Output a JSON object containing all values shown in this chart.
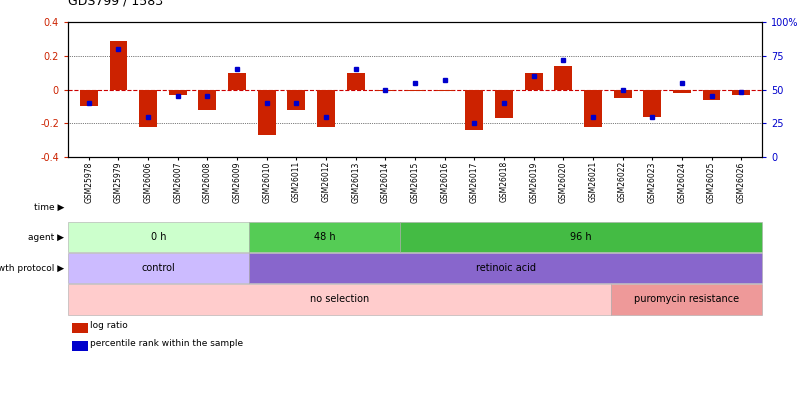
{
  "title": "GDS799 / 1583",
  "samples": [
    "GSM25978",
    "GSM25979",
    "GSM26006",
    "GSM26007",
    "GSM26008",
    "GSM26009",
    "GSM26010",
    "GSM26011",
    "GSM26012",
    "GSM26013",
    "GSM26014",
    "GSM26015",
    "GSM26016",
    "GSM26017",
    "GSM26018",
    "GSM26019",
    "GSM26020",
    "GSM26021",
    "GSM26022",
    "GSM26023",
    "GSM26024",
    "GSM26025",
    "GSM26026"
  ],
  "log_ratio": [
    -0.1,
    0.29,
    -0.22,
    -0.03,
    -0.12,
    0.1,
    -0.27,
    -0.12,
    -0.22,
    0.1,
    -0.01,
    -0.01,
    -0.01,
    -0.24,
    -0.17,
    0.1,
    0.14,
    -0.22,
    -0.05,
    -0.16,
    -0.02,
    -0.06,
    -0.03
  ],
  "pct_rank": [
    40,
    80,
    30,
    45,
    45,
    65,
    40,
    40,
    30,
    65,
    50,
    55,
    57,
    25,
    40,
    60,
    72,
    30,
    50,
    30,
    55,
    45,
    48
  ],
  "bar_color": "#cc2200",
  "pct_color": "#0000cc",
  "zero_line_color": "#cc0000",
  "bg_color": "#ffffff",
  "time_groups": [
    {
      "label": "0 h",
      "start": 0,
      "end": 6,
      "color": "#ccffcc"
    },
    {
      "label": "48 h",
      "start": 6,
      "end": 11,
      "color": "#55cc55"
    },
    {
      "label": "96 h",
      "start": 11,
      "end": 23,
      "color": "#44bb44"
    }
  ],
  "agent_groups": [
    {
      "label": "control",
      "start": 0,
      "end": 6,
      "color": "#ccbbff"
    },
    {
      "label": "retinoic acid",
      "start": 6,
      "end": 23,
      "color": "#8866cc"
    }
  ],
  "growth_groups": [
    {
      "label": "no selection",
      "start": 0,
      "end": 18,
      "color": "#ffcccc"
    },
    {
      "label": "puromycin resistance",
      "start": 18,
      "end": 23,
      "color": "#ee9999"
    }
  ],
  "legend_items": [
    {
      "label": "log ratio",
      "color": "#cc2200"
    },
    {
      "label": "percentile rank within the sample",
      "color": "#0000cc"
    }
  ]
}
